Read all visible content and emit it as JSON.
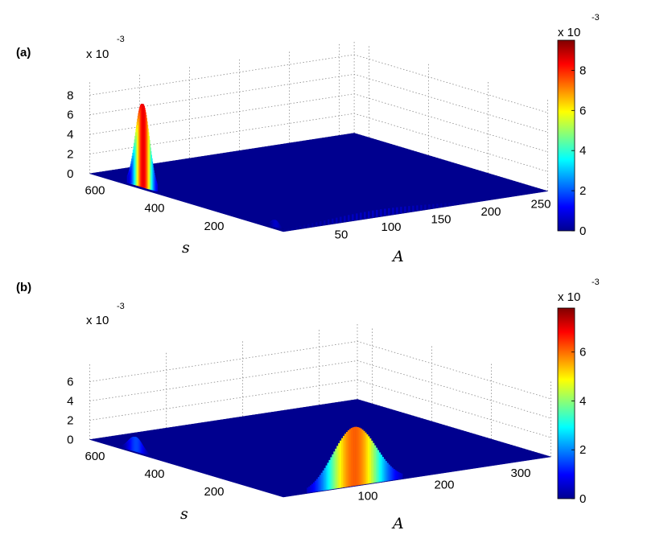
{
  "chart_data": [
    {
      "type": "surface3d",
      "panel_label": "(a)",
      "xlabel": "s",
      "ylabel": "A",
      "x_ticks": [
        600,
        400,
        200
      ],
      "y_ticks": [
        50,
        100,
        150,
        200,
        250
      ],
      "z_ticks": [
        0,
        2,
        4,
        6,
        8
      ],
      "z_exponent_label": "x 10",
      "z_exponent": "-3",
      "xlim": [
        0,
        650
      ],
      "ylim": [
        0,
        265
      ],
      "zlim": [
        0,
        0.0095
      ],
      "colorbar": {
        "ticks": [
          0,
          2,
          4,
          6,
          8
        ],
        "exponent_label": "x 10",
        "exponent": "-3",
        "range": [
          0,
          0.0095
        ],
        "colormap": [
          "#00008f",
          "#0000ff",
          "#0080ff",
          "#00ffff",
          "#80ff80",
          "#ffff00",
          "#ff8000",
          "#ff0000",
          "#800000"
        ]
      },
      "peaks": [
        {
          "s": 490,
          "A": 5,
          "height": 0.0085,
          "s_width": 22,
          "A_width": 4
        },
        {
          "s": 45,
          "A": 5,
          "height": 0.0007,
          "s_width": 12,
          "A_width": 4
        },
        {
          "s": 4,
          "A": 95,
          "height": 0.0007,
          "s_width": 3,
          "A_width": 55
        }
      ]
    },
    {
      "type": "surface3d",
      "panel_label": "(b)",
      "xlabel": "s",
      "ylabel": "A",
      "x_ticks": [
        600,
        400,
        200
      ],
      "y_ticks": [
        100,
        200,
        300
      ],
      "z_ticks": [
        0,
        2,
        4,
        6
      ],
      "z_exponent_label": "x 10",
      "z_exponent": "-3",
      "xlim": [
        0,
        650
      ],
      "ylim": [
        0,
        350
      ],
      "zlim": [
        0,
        0.0078
      ],
      "colorbar": {
        "ticks": [
          0,
          2,
          4,
          6
        ],
        "exponent_label": "x 10",
        "exponent": "-3",
        "range": [
          0,
          0.0078
        ],
        "colormap": [
          "#00008f",
          "#0000ff",
          "#0080ff",
          "#00ffff",
          "#80ff80",
          "#ffff00",
          "#ff8000",
          "#ff0000",
          "#800000"
        ]
      },
      "peaks": [
        {
          "s": 510,
          "A": 5,
          "height": 0.0015,
          "s_width": 22,
          "A_width": 5
        },
        {
          "s": 4,
          "A": 95,
          "height": 0.0061,
          "s_width": 3,
          "A_width": 28
        }
      ]
    }
  ]
}
